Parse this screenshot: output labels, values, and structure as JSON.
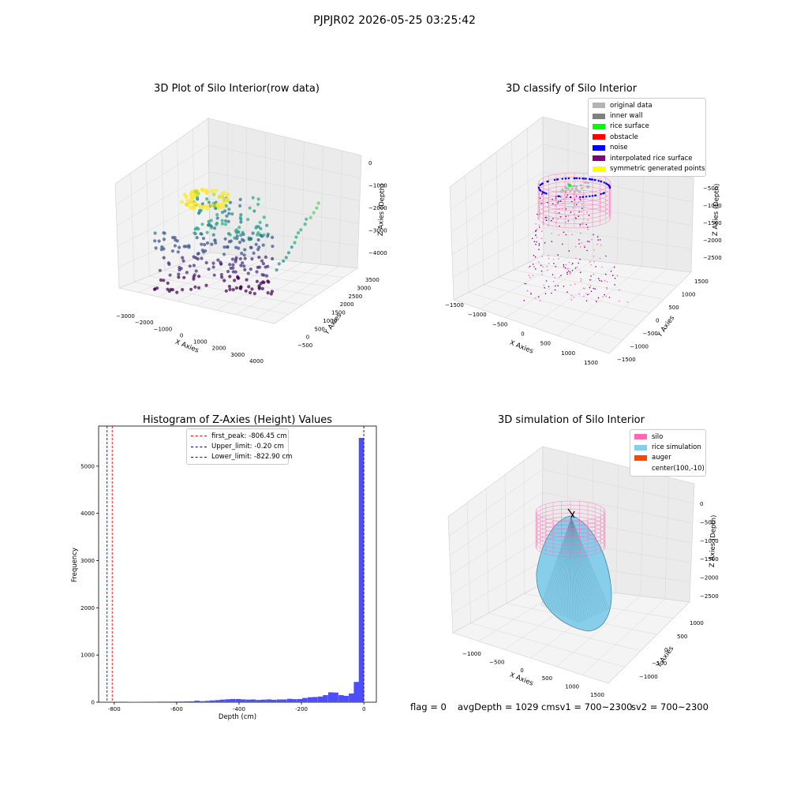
{
  "suptitle": "PJPJR02 2026-05-25 03:25:42",
  "colors": {
    "original": "#b3b3b3",
    "inner_wall": "#808080",
    "rice_surface": "#00ff00",
    "obstacle": "#ff0000",
    "noise": "#0000ff",
    "interpolated": "#800080",
    "symmetric": "#ffff00",
    "silo": "#ff69b4",
    "rice_sim": "#87ceeb",
    "auger": "#ff4500",
    "hist_bar": "#4d4dff"
  },
  "panel1": {
    "title": "3D Plot of Silo Interior(row data)",
    "xlabel": "X Axies",
    "ylabel": "Y Axies",
    "zlabel": "Z Axies (Depth)",
    "xticks": [
      "−3000",
      "−2000",
      "−1000",
      "0",
      "1000",
      "2000",
      "3000",
      "4000"
    ],
    "yticks": [
      "−500",
      "0",
      "500",
      "1000",
      "1500",
      "2000",
      "2500",
      "3000",
      "3500"
    ],
    "zticks": [
      "0",
      "−1000",
      "−2000",
      "−3000",
      "−4000"
    ]
  },
  "panel2": {
    "title": "3D classify of Silo Interior",
    "xlabel": "X Axies",
    "ylabel": "Y Axies",
    "zlabel": "Z Axies (Depth)",
    "xticks": [
      "−1500",
      "−1000",
      "−500",
      "0",
      "500",
      "1000",
      "1500"
    ],
    "yticks": [
      "−1500",
      "−1000",
      "−500",
      "0",
      "500",
      "1000",
      "1500"
    ],
    "zticks": [
      "−500",
      "−1000",
      "−1500",
      "−2000",
      "−2500"
    ],
    "legend": [
      "original data",
      "inner wall",
      "rice surface",
      "obstacle",
      "noise",
      "interpolated rice surface",
      "symmetric generated points"
    ]
  },
  "panel4": {
    "title": "3D simulation of Silo Interior",
    "xlabel": "X Axies",
    "ylabel": "Y Axies",
    "zlabel": "Z Axies (Depth)",
    "xticks": [
      "−1000",
      "−500",
      "0",
      "500",
      "1000",
      "1500"
    ],
    "yticks": [
      "−1000",
      "−500",
      "0",
      "500",
      "1000"
    ],
    "zticks": [
      "0",
      "−500",
      "−1000",
      "−1500",
      "−2000",
      "−2500"
    ],
    "legend": [
      "silo",
      "rice simulation",
      "auger",
      "center(100,-10)"
    ]
  },
  "chart_data": [
    {
      "type": "histogram",
      "title": "Histogram of Z-Axies (Height) Values",
      "xlabel": "Depth (cm)",
      "ylabel": "Frequency",
      "xlim": [
        -850,
        40
      ],
      "ylim": [
        0,
        5850
      ],
      "xticks": [
        -800,
        -600,
        -400,
        -200,
        0
      ],
      "yticks": [
        0,
        1000,
        2000,
        3000,
        4000,
        5000
      ],
      "bin_width": 16.5,
      "bins": [
        {
          "x": -750,
          "count": 8
        },
        {
          "x": -733,
          "count": 8
        },
        {
          "x": -717,
          "count": 8
        },
        {
          "x": -700,
          "count": 10
        },
        {
          "x": -684,
          "count": 10
        },
        {
          "x": -667,
          "count": 10
        },
        {
          "x": -651,
          "count": 12
        },
        {
          "x": -634,
          "count": 12
        },
        {
          "x": -618,
          "count": 12
        },
        {
          "x": -601,
          "count": 14
        },
        {
          "x": -585,
          "count": 15
        },
        {
          "x": -568,
          "count": 18
        },
        {
          "x": -552,
          "count": 20
        },
        {
          "x": -535,
          "count": 32
        },
        {
          "x": -519,
          "count": 22
        },
        {
          "x": -502,
          "count": 28
        },
        {
          "x": -486,
          "count": 38
        },
        {
          "x": -469,
          "count": 45
        },
        {
          "x": -453,
          "count": 55
        },
        {
          "x": -436,
          "count": 62
        },
        {
          "x": -420,
          "count": 68
        },
        {
          "x": -403,
          "count": 68
        },
        {
          "x": -387,
          "count": 60
        },
        {
          "x": -370,
          "count": 55
        },
        {
          "x": -354,
          "count": 58
        },
        {
          "x": -337,
          "count": 48
        },
        {
          "x": -321,
          "count": 55
        },
        {
          "x": -304,
          "count": 60
        },
        {
          "x": -288,
          "count": 52
        },
        {
          "x": -271,
          "count": 58
        },
        {
          "x": -255,
          "count": 58
        },
        {
          "x": -238,
          "count": 72
        },
        {
          "x": -222,
          "count": 65
        },
        {
          "x": -205,
          "count": 68
        },
        {
          "x": -189,
          "count": 90
        },
        {
          "x": -172,
          "count": 105
        },
        {
          "x": -156,
          "count": 110
        },
        {
          "x": -139,
          "count": 120
        },
        {
          "x": -123,
          "count": 150
        },
        {
          "x": -106,
          "count": 210
        },
        {
          "x": -90,
          "count": 205
        },
        {
          "x": -73,
          "count": 150
        },
        {
          "x": -57,
          "count": 135
        },
        {
          "x": -40,
          "count": 185
        },
        {
          "x": -24,
          "count": 430
        },
        {
          "x": -8,
          "count": 5600
        }
      ],
      "vlines": [
        {
          "label": "first_peak: -806.45 cm",
          "x": -806.45,
          "color": "#ff0000"
        },
        {
          "label": "Upper_limit: -0.20 cm",
          "x": -0.2,
          "color": "#00008b"
        },
        {
          "label": "Lower_limit: -822.90 cm",
          "x": -822.9,
          "color": "#0000ff"
        }
      ]
    }
  ],
  "status": {
    "flag": "flag = 0",
    "avg": "avgDepth = 1029 cmsv1 = 700~2300",
    "sv2": "sv2 = 700~2300"
  }
}
